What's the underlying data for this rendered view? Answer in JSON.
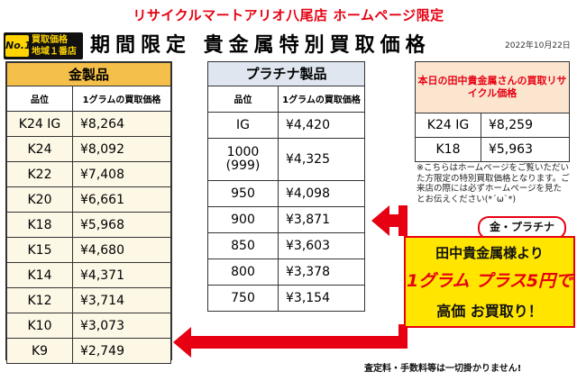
{
  "header": {
    "top_title": "リサイクルマートアリオ八尾店  ホームページ限定",
    "badge_no1": "No.1",
    "badge_line1": "買取価格",
    "badge_line2": "地域１番店",
    "main_title": "期間限定  貴金属特別買取価格",
    "date": "2022年10月22日"
  },
  "gold": {
    "title": "金製品",
    "col_grade": "品位",
    "col_price": "1グラムの買取価格",
    "rows": [
      {
        "grade": "K24 IG",
        "price": "¥8,264"
      },
      {
        "grade": "K24",
        "price": "¥8,092"
      },
      {
        "grade": "K22",
        "price": "¥7,408"
      },
      {
        "grade": "K20",
        "price": "¥6,661"
      },
      {
        "grade": "K18",
        "price": "¥5,968"
      },
      {
        "grade": "K15",
        "price": "¥4,680"
      },
      {
        "grade": "K14",
        "price": "¥4,371"
      },
      {
        "grade": "K12",
        "price": "¥3,714"
      },
      {
        "grade": "K10",
        "price": "¥3,073"
      },
      {
        "grade": "K9",
        "price": "¥2,749"
      }
    ]
  },
  "platinum": {
    "title": "プラチナ製品",
    "col_grade": "品位",
    "col_price": "1グラムの買取価格",
    "rows": [
      {
        "grade": "IG",
        "price": "¥4,420"
      },
      {
        "grade": "1000\n(999)",
        "price": "¥4,325"
      },
      {
        "grade": "950",
        "price": "¥4,098"
      },
      {
        "grade": "900",
        "price": "¥3,871"
      },
      {
        "grade": "850",
        "price": "¥3,603"
      },
      {
        "grade": "800",
        "price": "¥3,378"
      },
      {
        "grade": "750",
        "price": "¥3,154"
      }
    ]
  },
  "reference": {
    "title": "本日の田中貴金属さんの買取リサイクル価格",
    "rows": [
      {
        "grade": "K24 IG",
        "price": "¥8,259"
      },
      {
        "grade": "K18",
        "price": "¥5,963"
      }
    ]
  },
  "note": "※こちらはホームページをご覧いただいた方限定の特別買取価格となります。ご来店の際には必ずホームページを見たとお伝えください(*´ω`*)",
  "promo": {
    "tag": "金・プラチナ",
    "line1": "田中貴金属様より",
    "line2": "1グラム プラス5円で",
    "line3": "高価 お買取り！"
  },
  "footer": "査定料・手数料等は一切掛かりません!",
  "colors": {
    "accent_red": "#e60012",
    "gold_header": "#f5c04a",
    "promo_yellow": "#ffe500"
  }
}
